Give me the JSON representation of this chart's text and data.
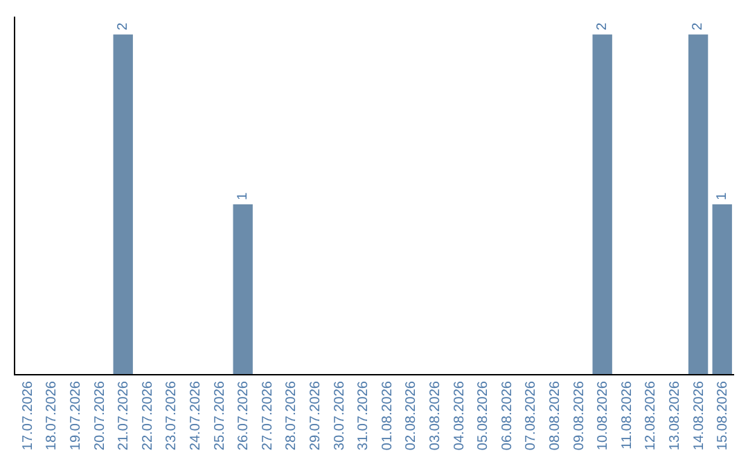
{
  "chart_data": {
    "type": "bar",
    "categories": [
      "17.07.2026",
      "18.07.2026",
      "19.07.2026",
      "20.07.2026",
      "21.07.2026",
      "22.07.2026",
      "23.07.2026",
      "24.07.2026",
      "25.07.2026",
      "26.07.2026",
      "27.07.2026",
      "28.07.2026",
      "29.07.2026",
      "30.07.2026",
      "31.07.2026",
      "01.08.2026",
      "02.08.2026",
      "03.08.2026",
      "04.08.2026",
      "05.08.2026",
      "06.08.2026",
      "07.08.2026",
      "08.08.2026",
      "09.08.2026",
      "10.08.2026",
      "11.08.2026",
      "12.08.2026",
      "13.08.2026",
      "14.08.2026",
      "15.08.2026"
    ],
    "values": [
      0,
      0,
      0,
      0,
      2,
      0,
      0,
      0,
      0,
      1,
      0,
      0,
      0,
      0,
      0,
      0,
      0,
      0,
      0,
      0,
      0,
      0,
      0,
      0,
      2,
      0,
      0,
      0,
      2,
      1
    ],
    "value_labels": [
      null,
      null,
      null,
      null,
      "2",
      null,
      null,
      null,
      null,
      "1",
      null,
      null,
      null,
      null,
      null,
      null,
      null,
      null,
      null,
      null,
      null,
      null,
      null,
      null,
      "2",
      null,
      null,
      null,
      "2",
      "1"
    ],
    "color": "#6b8cab",
    "tick_labels": "x"
  }
}
